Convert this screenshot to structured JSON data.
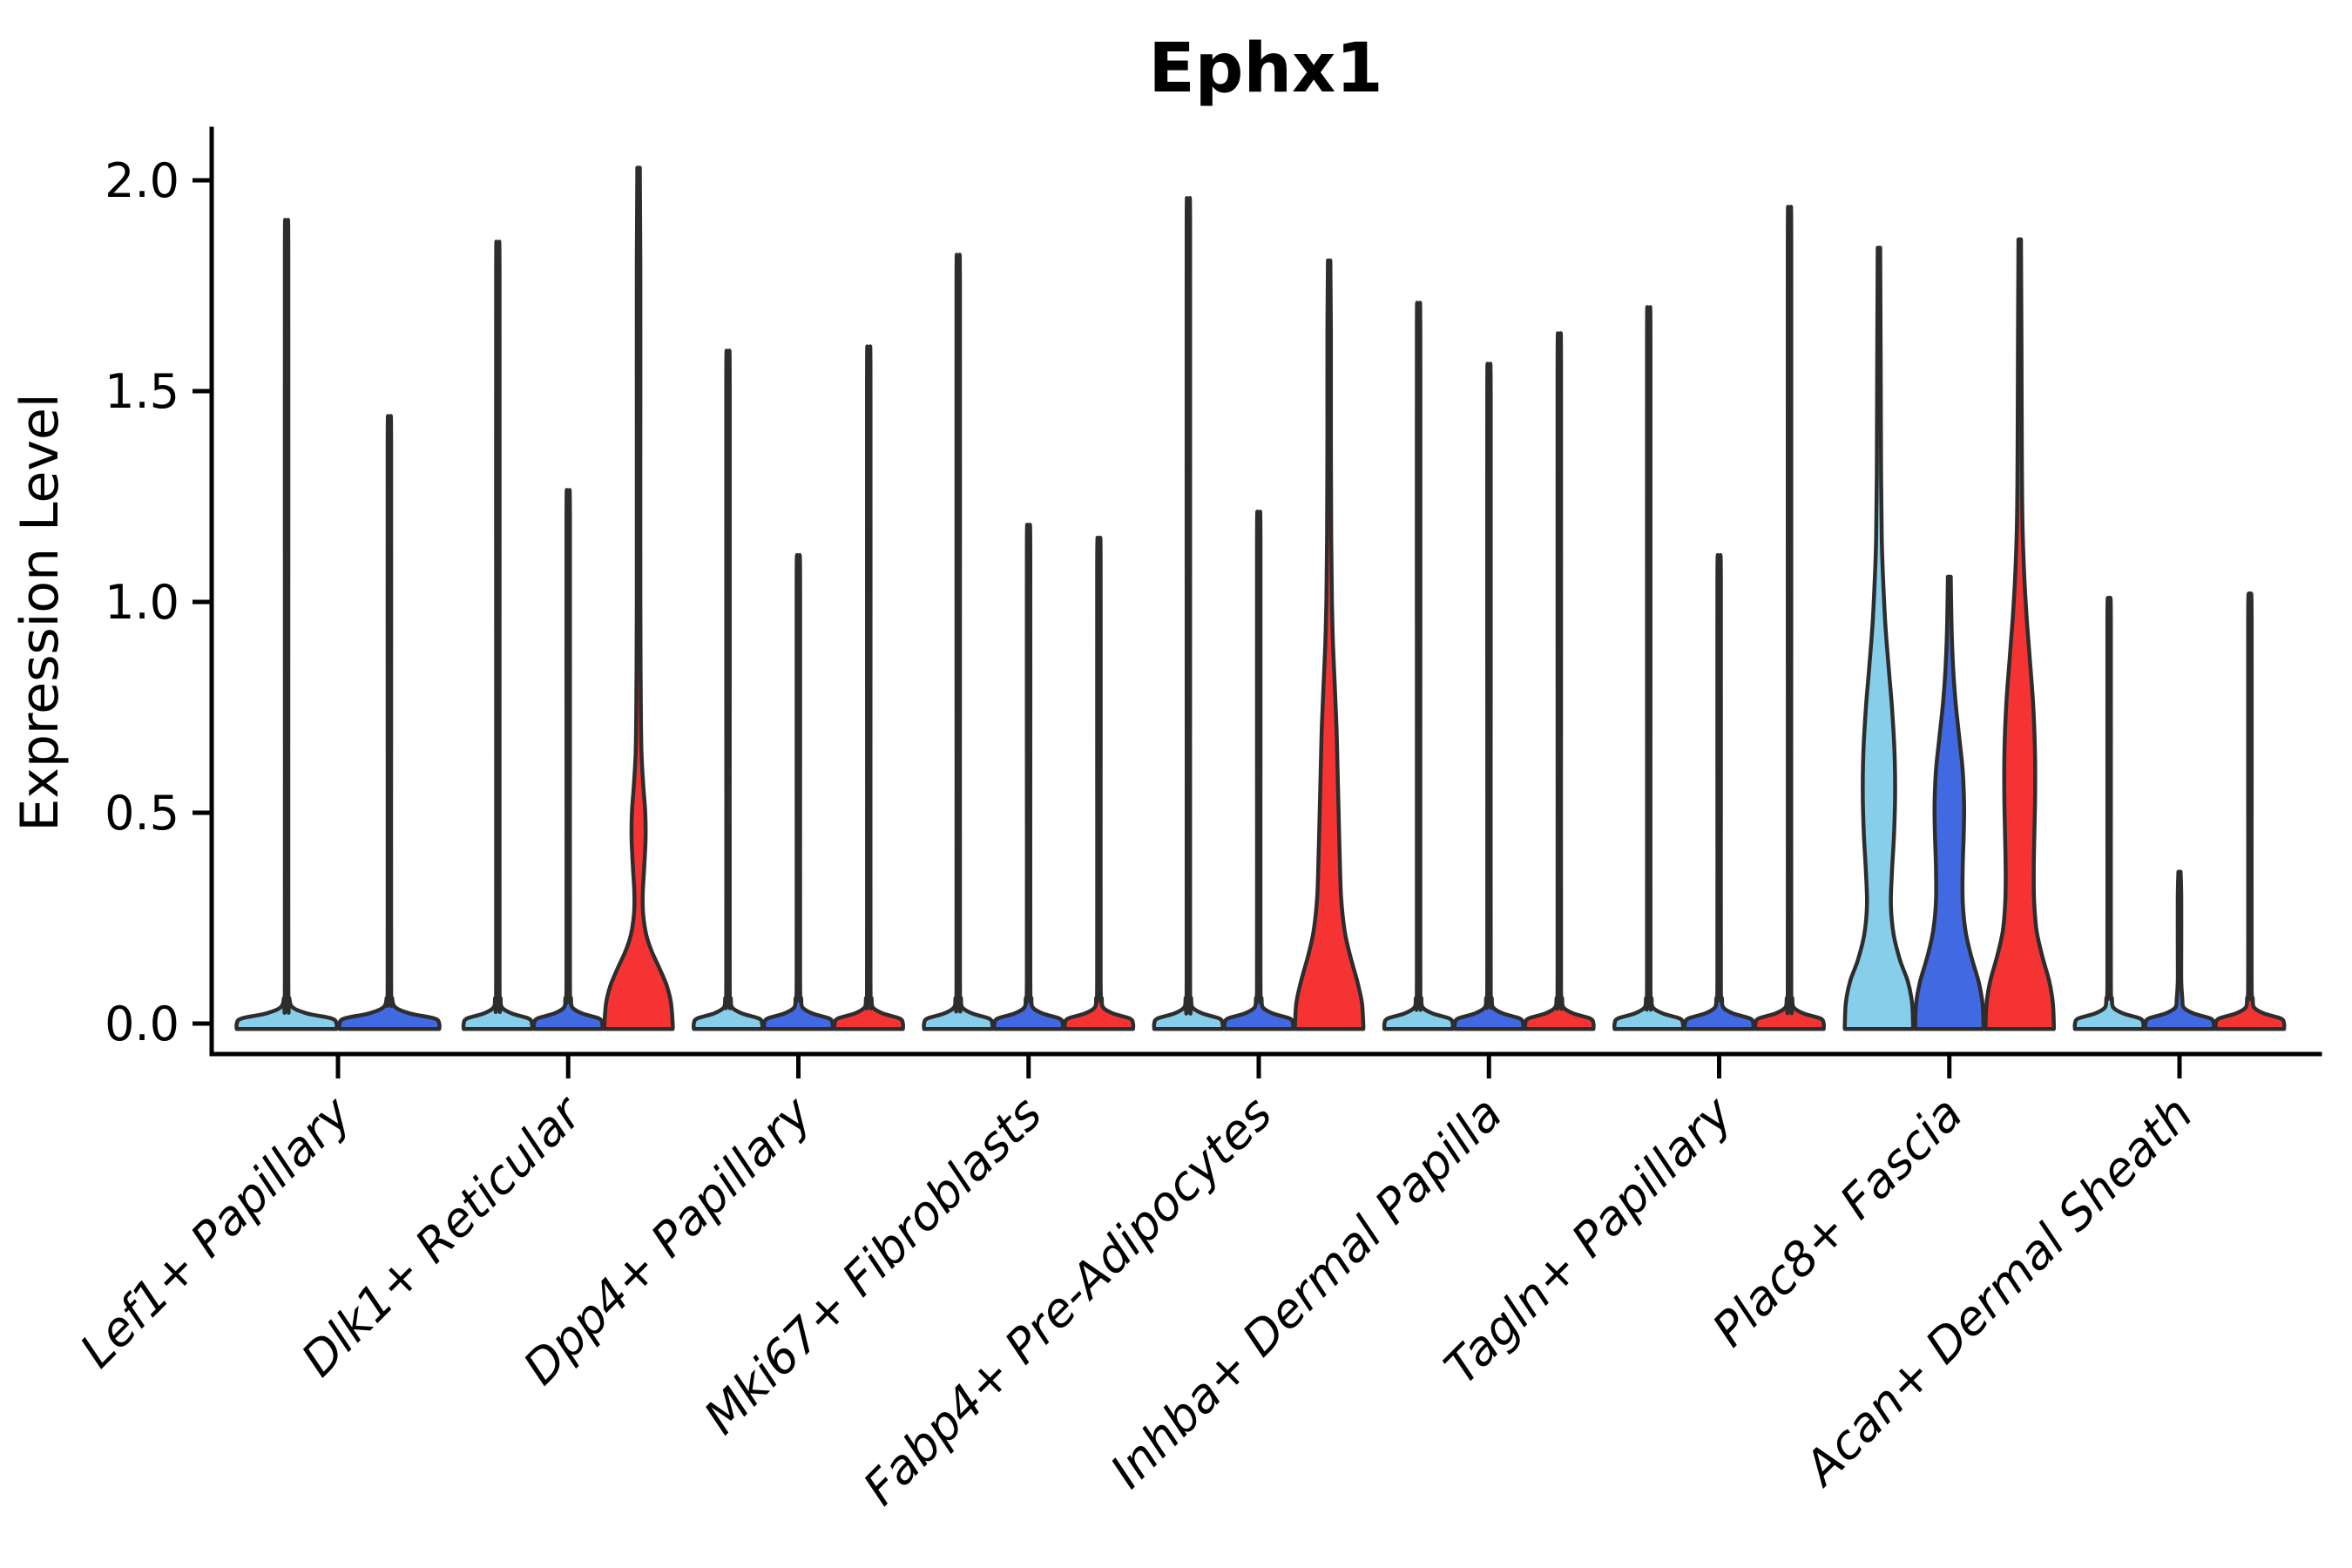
{
  "title": "Ephx1",
  "y_axis": {
    "label": "Expression Level",
    "tick_labels": [
      "0.0",
      "0.5",
      "1.0",
      "1.5",
      "2.0"
    ],
    "tick_values": [
      0.0,
      0.5,
      1.0,
      1.5,
      2.0
    ]
  },
  "x_axis": {
    "categories": [
      "Lef1+ Papillary",
      "Dlk1+ Reticular",
      "Dpp4+ Papillary",
      "Mki67+ Fibroblasts",
      "Fabp4+ Pre-Adipocytes",
      "Inhba+ Dermal Papilla",
      "Tagln+ Papillary",
      "Plac8+ Fascia",
      "Acan+ Dermal Sheath"
    ]
  },
  "style": {
    "outline_color": "#2d2d2d",
    "axis_color": "#000000",
    "palette": [
      "#87CEEB",
      "#4169E1",
      "#F63333"
    ]
  },
  "chart_data": {
    "type": "violin",
    "title": "Ephx1",
    "ylabel": "Expression Level",
    "xlabel": "",
    "ylim": [
      -0.08,
      2.12
    ],
    "yticks": [
      0.0,
      0.5,
      1.0,
      1.5,
      2.0
    ],
    "grid": false,
    "legend": "none",
    "series_colors": [
      "#87CEEB",
      "#4169E1",
      "#F63333"
    ],
    "groups": [
      {
        "label": "Lef1+ Papillary",
        "violins": [
          {
            "color": "#87CEEB",
            "max": 1.88,
            "profile": "spike"
          },
          {
            "color": "#4169E1",
            "max": 1.43,
            "profile": "spike"
          }
        ]
      },
      {
        "label": "Dlk1+ Reticular",
        "violins": [
          {
            "color": "#87CEEB",
            "max": 1.83,
            "profile": "spike"
          },
          {
            "color": "#4169E1",
            "max": 1.26,
            "profile": "spike"
          },
          {
            "color": "#F63333",
            "max": 2.03,
            "profile": "dlk1_red"
          }
        ]
      },
      {
        "label": "Dpp4+ Papillary",
        "violins": [
          {
            "color": "#87CEEB",
            "max": 1.58,
            "profile": "spike"
          },
          {
            "color": "#4169E1",
            "max": 1.11,
            "profile": "spike"
          },
          {
            "color": "#F63333",
            "max": 1.59,
            "profile": "spike"
          }
        ]
      },
      {
        "label": "Mki67+ Fibroblasts",
        "violins": [
          {
            "color": "#87CEEB",
            "max": 1.8,
            "profile": "spike"
          },
          {
            "color": "#4169E1",
            "max": 1.18,
            "profile": "spike"
          },
          {
            "color": "#F63333",
            "max": 1.15,
            "profile": "spike"
          }
        ]
      },
      {
        "label": "Fabp4+ Pre-Adipocytes",
        "violins": [
          {
            "color": "#87CEEB",
            "max": 1.93,
            "profile": "spike"
          },
          {
            "color": "#4169E1",
            "max": 1.21,
            "profile": "spike"
          },
          {
            "color": "#F63333",
            "max": 1.81,
            "profile": "fabp4_red"
          }
        ]
      },
      {
        "label": "Inhba+ Dermal Papilla",
        "violins": [
          {
            "color": "#87CEEB",
            "max": 1.69,
            "profile": "spike"
          },
          {
            "color": "#4169E1",
            "max": 1.55,
            "profile": "spike"
          },
          {
            "color": "#F63333",
            "max": 1.62,
            "profile": "spike"
          }
        ]
      },
      {
        "label": "Tagln+ Papillary",
        "violins": [
          {
            "color": "#87CEEB",
            "max": 1.68,
            "profile": "spike"
          },
          {
            "color": "#4169E1",
            "max": 1.11,
            "profile": "spike"
          },
          {
            "color": "#F63333",
            "max": 1.91,
            "profile": "spike"
          }
        ]
      },
      {
        "label": "Plac8+ Fascia",
        "violins": [
          {
            "color": "#87CEEB",
            "max": 1.84,
            "profile": "plac8_sky"
          },
          {
            "color": "#4169E1",
            "max": 1.06,
            "profile": "plac8_blue"
          },
          {
            "color": "#F63333",
            "max": 1.86,
            "profile": "plac8_red"
          }
        ]
      },
      {
        "label": "Acan+ Dermal Sheath",
        "violins": [
          {
            "color": "#87CEEB",
            "max": 1.01,
            "profile": "spike"
          },
          {
            "color": "#4169E1",
            "max": 0.36,
            "profile": "spike"
          },
          {
            "color": "#F63333",
            "max": 1.02,
            "profile": "spike"
          }
        ]
      }
    ],
    "profiles": {
      "dlk1_red": [
        [
          0,
          0.97
        ],
        [
          0.05,
          0.92
        ],
        [
          0.09,
          0.8
        ],
        [
          0.13,
          0.6
        ],
        [
          0.17,
          0.38
        ],
        [
          0.21,
          0.22
        ],
        [
          0.26,
          0.13
        ],
        [
          0.31,
          0.12
        ],
        [
          0.37,
          0.16
        ],
        [
          0.44,
          0.2
        ],
        [
          0.5,
          0.19
        ],
        [
          0.57,
          0.13
        ],
        [
          0.65,
          0.08
        ],
        [
          0.8,
          0.06
        ],
        [
          1.0,
          0.05
        ],
        [
          1.4,
          0.05
        ],
        [
          1.8,
          0.05
        ],
        [
          2.03,
          0.035
        ]
      ],
      "fabp4_red": [
        [
          0,
          0.97
        ],
        [
          0.05,
          0.93
        ],
        [
          0.1,
          0.8
        ],
        [
          0.16,
          0.6
        ],
        [
          0.22,
          0.44
        ],
        [
          0.3,
          0.34
        ],
        [
          0.4,
          0.3
        ],
        [
          0.5,
          0.27
        ],
        [
          0.6,
          0.24
        ],
        [
          0.7,
          0.21
        ],
        [
          0.8,
          0.16
        ],
        [
          0.9,
          0.11
        ],
        [
          1.0,
          0.08
        ],
        [
          1.15,
          0.06
        ],
        [
          1.4,
          0.05
        ],
        [
          1.65,
          0.05
        ],
        [
          1.81,
          0.035
        ]
      ],
      "plac8_sky": [
        [
          0,
          0.97
        ],
        [
          0.05,
          0.94
        ],
        [
          0.1,
          0.82
        ],
        [
          0.15,
          0.6
        ],
        [
          0.21,
          0.42
        ],
        [
          0.28,
          0.34
        ],
        [
          0.36,
          0.37
        ],
        [
          0.45,
          0.43
        ],
        [
          0.55,
          0.46
        ],
        [
          0.65,
          0.44
        ],
        [
          0.75,
          0.37
        ],
        [
          0.85,
          0.27
        ],
        [
          0.95,
          0.18
        ],
        [
          1.05,
          0.12
        ],
        [
          1.15,
          0.08
        ],
        [
          1.3,
          0.06
        ],
        [
          1.55,
          0.05
        ],
        [
          1.84,
          0.035
        ]
      ],
      "plac8_blue": [
        [
          0,
          0.97
        ],
        [
          0.05,
          0.94
        ],
        [
          0.1,
          0.83
        ],
        [
          0.16,
          0.62
        ],
        [
          0.22,
          0.46
        ],
        [
          0.29,
          0.38
        ],
        [
          0.37,
          0.38
        ],
        [
          0.45,
          0.41
        ],
        [
          0.52,
          0.42
        ],
        [
          0.6,
          0.38
        ],
        [
          0.68,
          0.28
        ],
        [
          0.76,
          0.18
        ],
        [
          0.84,
          0.11
        ],
        [
          0.92,
          0.07
        ],
        [
          1.0,
          0.05
        ],
        [
          1.06,
          0.04
        ]
      ],
      "plac8_red": [
        [
          0,
          0.97
        ],
        [
          0.05,
          0.94
        ],
        [
          0.1,
          0.84
        ],
        [
          0.16,
          0.64
        ],
        [
          0.22,
          0.48
        ],
        [
          0.29,
          0.41
        ],
        [
          0.37,
          0.4
        ],
        [
          0.46,
          0.42
        ],
        [
          0.56,
          0.44
        ],
        [
          0.66,
          0.43
        ],
        [
          0.76,
          0.38
        ],
        [
          0.86,
          0.29
        ],
        [
          0.96,
          0.2
        ],
        [
          1.06,
          0.13
        ],
        [
          1.18,
          0.08
        ],
        [
          1.35,
          0.06
        ],
        [
          1.6,
          0.05
        ],
        [
          1.86,
          0.035
        ]
      ]
    }
  }
}
